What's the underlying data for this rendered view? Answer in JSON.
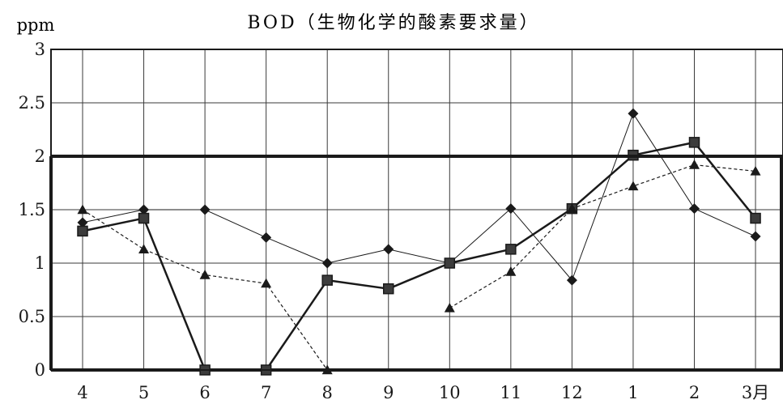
{
  "chart_data": {
    "type": "line",
    "title": "BOD（生物化学的酸素要求量）",
    "ylabel": "ppm",
    "xlabel": "",
    "categories": [
      "4",
      "5",
      "6",
      "7",
      "8",
      "9",
      "10",
      "11",
      "12",
      "1",
      "2",
      "3月"
    ],
    "ylim": [
      0,
      3
    ],
    "yticks": [
      "0",
      "0.5",
      "1",
      "1.5",
      "2",
      "2.5",
      "3"
    ],
    "yticks_values": [
      0,
      0.5,
      1,
      1.5,
      2,
      2.5,
      3
    ],
    "grid": true,
    "reference_line": 2,
    "series": [
      {
        "marker": "diamond",
        "line": "thin-solid",
        "values": [
          1.38,
          1.5,
          1.5,
          1.24,
          1.0,
          1.13,
          1.0,
          1.51,
          0.84,
          2.4,
          1.51,
          1.25
        ]
      },
      {
        "marker": "square",
        "line": "bold-solid",
        "values": [
          1.3,
          1.42,
          0.0,
          0.0,
          0.84,
          0.76,
          1.0,
          1.13,
          1.51,
          2.01,
          2.13,
          1.42
        ]
      },
      {
        "marker": "triangle",
        "line": "dashed",
        "values": [
          1.5,
          1.13,
          0.89,
          0.81,
          0.0,
          null,
          0.58,
          0.92,
          1.51,
          1.72,
          1.92,
          1.86
        ]
      }
    ],
    "colors": {
      "line": "#1a1a1a",
      "grid": "#3a3a3a",
      "background": "#ffffff"
    }
  }
}
